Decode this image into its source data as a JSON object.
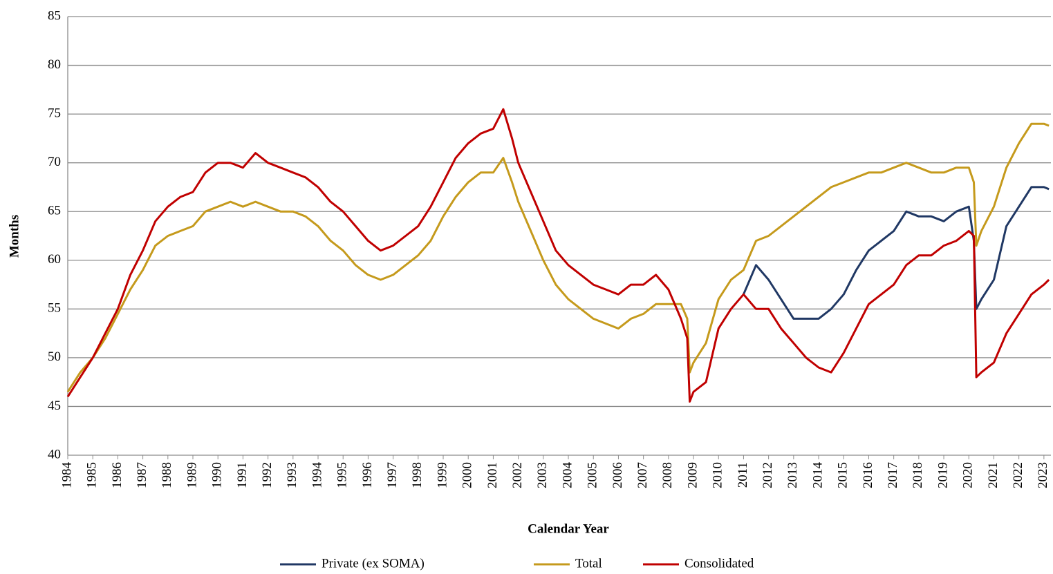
{
  "chart_data": {
    "type": "line",
    "y_label": "Months",
    "x_label": "Calendar Year",
    "x": [
      1984,
      1984.5,
      1985,
      1985.5,
      1986,
      1986.5,
      1987,
      1987.5,
      1988,
      1988.5,
      1989,
      1989.5,
      1990,
      1990.5,
      1991,
      1991.5,
      1992,
      1992.5,
      1993,
      1993.5,
      1994,
      1994.5,
      1995,
      1995.5,
      1996,
      1996.5,
      1997,
      1997.5,
      1998,
      1998.5,
      1999,
      1999.5,
      2000,
      2000.5,
      2001,
      2001.4,
      2001.75,
      2002,
      2002.5,
      2003,
      2003.5,
      2004,
      2004.5,
      2005,
      2005.5,
      2006,
      2006.5,
      2007,
      2007.5,
      2008,
      2008.5,
      2008.75,
      2008.85,
      2009,
      2009.5,
      2010,
      2010.5,
      2011,
      2011.5,
      2012,
      2012.5,
      2013,
      2013.5,
      2014,
      2014.5,
      2015,
      2015.5,
      2016,
      2016.5,
      2017,
      2017.5,
      2018,
      2018.5,
      2019,
      2019.5,
      2020,
      2020.2,
      2020.3,
      2020.5,
      2021,
      2021.5,
      2022,
      2022.5,
      2023,
      2023.2
    ],
    "series": [
      {
        "name": "Private (ex SOMA)",
        "color": "#203864",
        "values": [
          null,
          null,
          null,
          null,
          null,
          null,
          null,
          null,
          null,
          null,
          null,
          null,
          null,
          null,
          null,
          null,
          null,
          null,
          null,
          null,
          null,
          null,
          null,
          null,
          null,
          null,
          null,
          null,
          null,
          null,
          null,
          null,
          null,
          null,
          null,
          null,
          null,
          null,
          null,
          null,
          null,
          null,
          null,
          null,
          null,
          null,
          null,
          null,
          null,
          null,
          null,
          null,
          null,
          null,
          null,
          null,
          null,
          56.5,
          59.5,
          58,
          56,
          54,
          54,
          54,
          55,
          56.5,
          59,
          61,
          62,
          63,
          65,
          64.5,
          64.5,
          64,
          65,
          65.5,
          62,
          55,
          56,
          58,
          63.5,
          65.5,
          67.5,
          67.5,
          67.3
        ]
      },
      {
        "name": "Total",
        "color": "#c59a1c",
        "values": [
          46.5,
          48.5,
          50,
          52,
          54.5,
          57,
          59,
          61.5,
          62.5,
          63,
          63.5,
          65,
          65.5,
          66,
          65.5,
          66,
          65.5,
          65,
          65,
          64.5,
          63.5,
          62,
          61,
          59.5,
          58.5,
          58,
          58.5,
          59.5,
          60.5,
          62,
          64.5,
          66.5,
          68,
          69,
          69,
          70.5,
          68,
          66,
          63,
          60,
          57.5,
          56,
          55,
          54,
          53.5,
          53,
          54,
          54.5,
          55.5,
          55.5,
          55.5,
          54,
          48.5,
          49.5,
          51.5,
          56,
          58,
          59,
          62,
          62.5,
          63.5,
          64.5,
          65.5,
          66.5,
          67.5,
          68,
          68.5,
          69,
          69,
          69.5,
          70,
          69.5,
          69,
          69,
          69.5,
          69.5,
          68,
          61.5,
          63,
          65.5,
          69.5,
          72,
          74,
          74,
          73.8
        ]
      },
      {
        "name": "Consolidated",
        "color": "#c00000",
        "values": [
          46,
          48,
          50,
          52.5,
          55,
          58.5,
          61,
          64,
          65.5,
          66.5,
          67,
          69,
          70,
          70,
          69.5,
          71,
          70,
          69.5,
          69,
          68.5,
          67.5,
          66,
          65,
          63.5,
          62,
          61,
          61.5,
          62.5,
          63.5,
          65.5,
          68,
          70.5,
          72,
          73,
          73.5,
          75.5,
          72.5,
          70,
          67,
          64,
          61,
          59.5,
          58.5,
          57.5,
          57,
          56.5,
          57.5,
          57.5,
          58.5,
          57,
          54,
          52,
          45.5,
          46.5,
          47.5,
          53,
          55,
          56.5,
          55,
          55,
          53,
          51.5,
          50,
          49,
          48.5,
          50.5,
          53,
          55.5,
          56.5,
          57.5,
          59.5,
          60.5,
          60.5,
          61.5,
          62,
          63,
          62.5,
          48,
          48.5,
          49.5,
          52.5,
          54.5,
          56.5,
          57.5,
          58
        ]
      }
    ],
    "xlim": [
      1984,
      2023.28
    ],
    "xticks": [
      1984,
      1985,
      1986,
      1987,
      1988,
      1989,
      1990,
      1991,
      1992,
      1993,
      1994,
      1995,
      1996,
      1997,
      1998,
      1999,
      2000,
      2001,
      2002,
      2003,
      2004,
      2005,
      2006,
      2007,
      2008,
      2009,
      2010,
      2011,
      2012,
      2013,
      2014,
      2015,
      2016,
      2017,
      2018,
      2019,
      2020,
      2021,
      2022,
      2023
    ],
    "ylim": [
      40,
      85
    ],
    "yticks": [
      40,
      45,
      50,
      55,
      60,
      65,
      70,
      75,
      80,
      85
    ],
    "grid": true,
    "legend": "bottom"
  }
}
